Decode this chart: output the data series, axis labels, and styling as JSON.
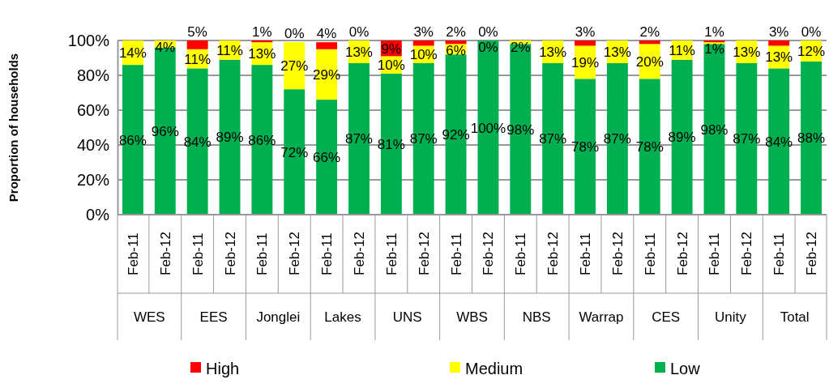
{
  "chart_data": {
    "type": "bar",
    "stacked": true,
    "ylabel": "Proportion of households",
    "categories": [
      "Feb-11",
      "Feb-12",
      "Feb-11",
      "Feb-12",
      "Feb-11",
      "Feb-12",
      "Feb-11",
      "Feb-12",
      "Feb-11",
      "Feb-12",
      "Feb-11",
      "Feb-12",
      "Feb-11",
      "Feb-12",
      "Feb-11",
      "Feb-12",
      "Feb-11",
      "Feb-12",
      "Feb-11",
      "Feb-12",
      "Feb-11",
      "Feb-12"
    ],
    "annotations": [
      "WES",
      "EES",
      "Jonglei",
      "Lakes",
      "UNS",
      "WBS",
      "NBS",
      "Warrap",
      "CES",
      "Unity",
      "Total"
    ],
    "series": [
      {
        "name": "Low",
        "color": "#00b050",
        "values": [
          86,
          96,
          84,
          89,
          86,
          72,
          66,
          87,
          81,
          87,
          92,
          100,
          98,
          87,
          78,
          87,
          78,
          89,
          98,
          87,
          84,
          88
        ],
        "value_labels": [
          "86%",
          "96%",
          "84%",
          "89%",
          "86%",
          "72%",
          "66%",
          "87%",
          "81%",
          "87%",
          "92%",
          "100%",
          "98%",
          "87%",
          "78%",
          "87%",
          "78%",
          "89%",
          "98%",
          "87%",
          "84%",
          "88%"
        ]
      },
      {
        "name": "Medium",
        "color": "#ffff00",
        "values": [
          14,
          4,
          11,
          11,
          13,
          27,
          29,
          13,
          10,
          10,
          6,
          0,
          2,
          13,
          19,
          13,
          20,
          11,
          1,
          13,
          13,
          12
        ],
        "value_labels": [
          "14%",
          "4%",
          "11%",
          "11%",
          "13%",
          "27%",
          "29%",
          "13%",
          "10%",
          "10%",
          "6%",
          "0%",
          "2%",
          "13%",
          "19%",
          "13%",
          "20%",
          "11%",
          "1%",
          "13%",
          "13%",
          "12%"
        ]
      },
      {
        "name": "High",
        "color": "#ff0000",
        "values": [
          0,
          0,
          5,
          0,
          1,
          0,
          4,
          0,
          9,
          3,
          2,
          0,
          0,
          0,
          3,
          0,
          2,
          0,
          1,
          0,
          3,
          0
        ],
        "value_labels": [
          null,
          null,
          "5%",
          null,
          "1%",
          "0%",
          "4%",
          "0%",
          "9%",
          "3%",
          "2%",
          "0%",
          null,
          null,
          "3%",
          null,
          "2%",
          null,
          "1%",
          null,
          "3%",
          "0%"
        ]
      }
    ],
    "ylim": [
      0,
      100
    ],
    "yticks": [
      {
        "value": 0,
        "label": "0%"
      },
      {
        "value": 20,
        "label": "20%"
      },
      {
        "value": 40,
        "label": "40%"
      },
      {
        "value": 60,
        "label": "60%"
      },
      {
        "value": 80,
        "label": "80%"
      },
      {
        "value": 100,
        "label": "100%"
      }
    ],
    "grid": "y",
    "legend": "bottom"
  }
}
